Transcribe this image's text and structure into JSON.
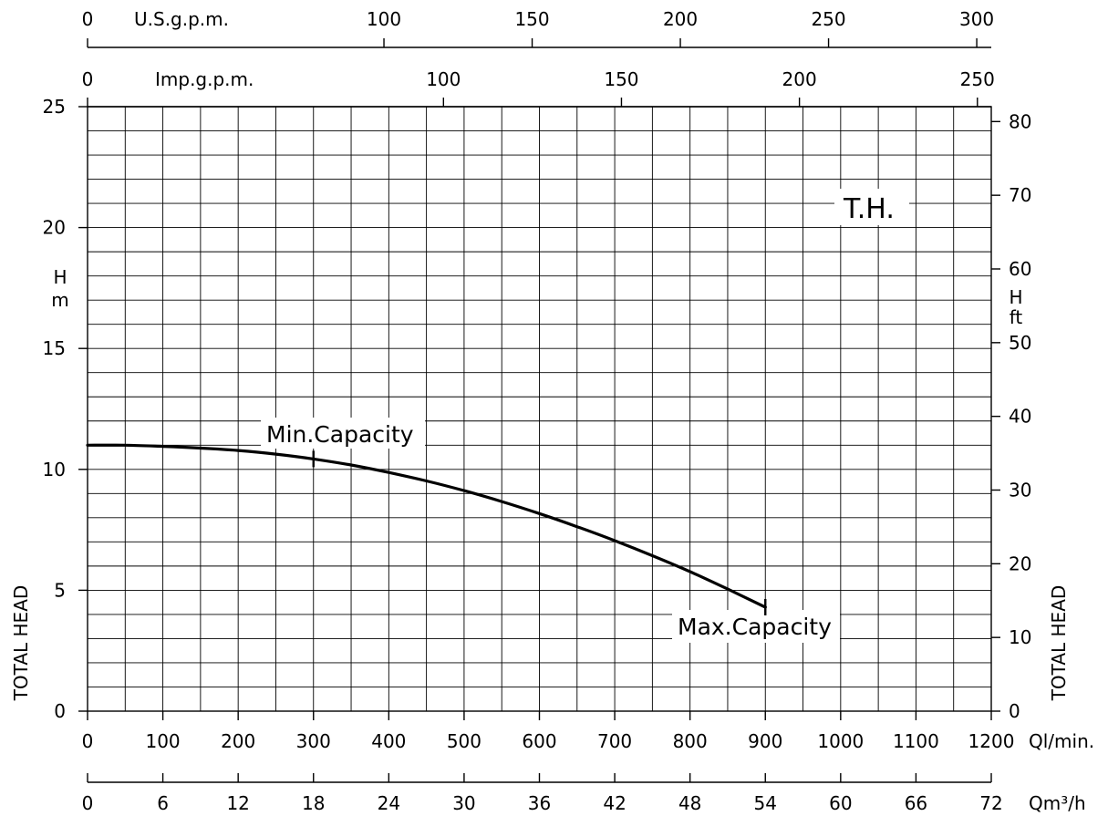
{
  "chart_data": {
    "type": "line",
    "title": "",
    "curve_label": "T.H.",
    "series": [
      {
        "name": "T.H.",
        "x": [
          0,
          50,
          100,
          150,
          200,
          250,
          300,
          350,
          400,
          450,
          500,
          550,
          600,
          650,
          700,
          750,
          800,
          850,
          900
        ],
        "values": [
          11.0,
          11.0,
          10.95,
          10.88,
          10.78,
          10.63,
          10.43,
          10.18,
          9.87,
          9.52,
          9.12,
          8.67,
          8.17,
          7.63,
          7.05,
          6.43,
          5.77,
          5.05,
          4.3
        ]
      }
    ],
    "annotations": [
      {
        "text": "Min.Capacity",
        "x": 300,
        "y": 10.43
      },
      {
        "text": "Max.Capacity",
        "x": 900,
        "y": 4.3
      }
    ],
    "axes": {
      "x_primary": {
        "unit": "Ql/min.",
        "range": [
          0,
          1200
        ],
        "ticks": [
          "0",
          "100",
          "200",
          "300",
          "400",
          "500",
          "600",
          "700",
          "800",
          "900",
          "1000",
          "1100",
          "1200"
        ]
      },
      "x_m3h": {
        "unit": "Qm³/h",
        "range": [
          0,
          72
        ],
        "ticks": [
          "0",
          "6",
          "12",
          "18",
          "24",
          "30",
          "36",
          "42",
          "48",
          "54",
          "60",
          "66",
          "72"
        ]
      },
      "x_imp_gpm": {
        "unit": "Imp.g.p.m.",
        "range": [
          0,
          253.9
        ],
        "ticks": [
          "0",
          "100",
          "150",
          "200",
          "250"
        ]
      },
      "x_us_gpm": {
        "unit": "U.S.g.p.m.",
        "range": [
          0,
          304.9
        ],
        "ticks": [
          "0",
          "100",
          "150",
          "200",
          "250",
          "300"
        ]
      },
      "y_left": {
        "label": "TOTAL HEAD",
        "unit_top": "H",
        "unit_bottom": "m",
        "range": [
          0,
          25
        ],
        "ticks": [
          "0",
          "5",
          "10",
          "15",
          "20",
          "25"
        ]
      },
      "y_right": {
        "label": "TOTAL HEAD",
        "unit_top": "H",
        "unit_bottom": "ft",
        "range": [
          0,
          82.02
        ],
        "ticks": [
          "0",
          "10",
          "20",
          "30",
          "40",
          "50",
          "60",
          "70",
          "80"
        ]
      }
    },
    "grid": true
  }
}
